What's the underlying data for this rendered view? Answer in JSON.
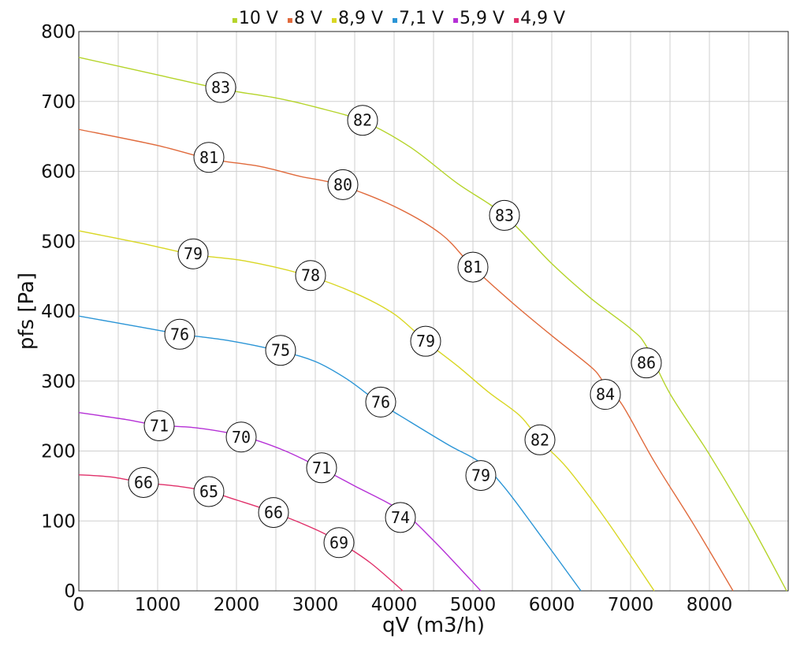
{
  "chart_data": {
    "type": "line",
    "xlabel": "qV (m3/h)",
    "ylabel": "pfs [Pa]",
    "xlim": [
      0,
      9000
    ],
    "ylim": [
      0,
      800
    ],
    "xticks": [
      0,
      1000,
      2000,
      3000,
      4000,
      5000,
      6000,
      7000,
      8000
    ],
    "yticks": [
      0,
      100,
      200,
      300,
      400,
      500,
      600,
      700,
      800
    ],
    "grid": true,
    "legend_position": "top-center",
    "series": [
      {
        "name": "10 V",
        "color": "#b5d42a",
        "points": [
          [
            0,
            763
          ],
          [
            1000,
            738
          ],
          [
            1800,
            718
          ],
          [
            2500,
            705
          ],
          [
            3000,
            692
          ],
          [
            3600,
            672
          ],
          [
            4200,
            635
          ],
          [
            4800,
            583
          ],
          [
            5400,
            537
          ],
          [
            6000,
            468
          ],
          [
            6500,
            418
          ],
          [
            7000,
            375
          ],
          [
            7200,
            350
          ],
          [
            7500,
            282
          ],
          [
            8000,
            195
          ],
          [
            8500,
            100
          ],
          [
            8980,
            0
          ]
        ],
        "labels": [
          {
            "x": 1800,
            "y": 720,
            "text": "83"
          },
          {
            "x": 3600,
            "y": 673,
            "text": "82"
          },
          {
            "x": 5400,
            "y": 537,
            "text": "83"
          },
          {
            "x": 7200,
            "y": 326,
            "text": "86"
          }
        ]
      },
      {
        "name": "8 V",
        "color": "#e06a3c",
        "points": [
          [
            0,
            660
          ],
          [
            1000,
            637
          ],
          [
            1650,
            618
          ],
          [
            2300,
            607
          ],
          [
            2800,
            593
          ],
          [
            3300,
            581
          ],
          [
            4000,
            550
          ],
          [
            4600,
            510
          ],
          [
            5000,
            463
          ],
          [
            5500,
            412
          ],
          [
            6000,
            365
          ],
          [
            6500,
            320
          ],
          [
            6650,
            300
          ],
          [
            6900,
            265
          ],
          [
            7300,
            185
          ],
          [
            7800,
            95
          ],
          [
            8300,
            0
          ]
        ],
        "labels": [
          {
            "x": 1650,
            "y": 620,
            "text": "81"
          },
          {
            "x": 3350,
            "y": 581,
            "text": "80"
          },
          {
            "x": 5000,
            "y": 463,
            "text": "81"
          },
          {
            "x": 6680,
            "y": 281,
            "text": "84"
          }
        ]
      },
      {
        "name": "8,9 V",
        "color": "#d9d724",
        "points": [
          [
            0,
            515
          ],
          [
            800,
            497
          ],
          [
            1450,
            481
          ],
          [
            2100,
            472
          ],
          [
            2900,
            451
          ],
          [
            3500,
            426
          ],
          [
            4000,
            396
          ],
          [
            4400,
            357
          ],
          [
            4800,
            322
          ],
          [
            5200,
            284
          ],
          [
            5600,
            250
          ],
          [
            5850,
            215
          ],
          [
            6200,
            175
          ],
          [
            6700,
            100
          ],
          [
            7300,
            0
          ]
        ],
        "labels": [
          {
            "x": 1450,
            "y": 482,
            "text": "79"
          },
          {
            "x": 2940,
            "y": 451,
            "text": "78"
          },
          {
            "x": 4400,
            "y": 357,
            "text": "79"
          },
          {
            "x": 5850,
            "y": 216,
            "text": "82"
          }
        ]
      },
      {
        "name": "7,1 V",
        "color": "#2b95d6",
        "points": [
          [
            0,
            393
          ],
          [
            700,
            379
          ],
          [
            1300,
            367
          ],
          [
            1900,
            358
          ],
          [
            2550,
            343
          ],
          [
            3000,
            328
          ],
          [
            3400,
            303
          ],
          [
            3800,
            270
          ],
          [
            4200,
            242
          ],
          [
            4700,
            208
          ],
          [
            5100,
            183
          ],
          [
            5400,
            148
          ],
          [
            5800,
            88
          ],
          [
            6370,
            0
          ]
        ],
        "labels": [
          {
            "x": 1280,
            "y": 367,
            "text": "76"
          },
          {
            "x": 2560,
            "y": 344,
            "text": "75"
          },
          {
            "x": 3830,
            "y": 270,
            "text": "76"
          },
          {
            "x": 5100,
            "y": 165,
            "text": "79"
          }
        ]
      },
      {
        "name": "5,9 V",
        "color": "#b530d6",
        "points": [
          [
            0,
            255
          ],
          [
            600,
            245
          ],
          [
            1000,
            237
          ],
          [
            1500,
            233
          ],
          [
            2050,
            222
          ],
          [
            2600,
            201
          ],
          [
            3080,
            175
          ],
          [
            3500,
            150
          ],
          [
            4080,
            115
          ],
          [
            4500,
            72
          ],
          [
            5100,
            0
          ]
        ],
        "labels": [
          {
            "x": 1020,
            "y": 236,
            "text": "71"
          },
          {
            "x": 2060,
            "y": 220,
            "text": "70"
          },
          {
            "x": 3080,
            "y": 176,
            "text": "71"
          },
          {
            "x": 4080,
            "y": 105,
            "text": "74"
          }
        ]
      },
      {
        "name": "4,9 V",
        "color": "#e0306a",
        "points": [
          [
            0,
            166
          ],
          [
            400,
            163
          ],
          [
            820,
            155
          ],
          [
            1300,
            149
          ],
          [
            1650,
            142
          ],
          [
            2000,
            130
          ],
          [
            2480,
            112
          ],
          [
            3000,
            88
          ],
          [
            3300,
            70
          ],
          [
            3700,
            40
          ],
          [
            4110,
            0
          ]
        ],
        "labels": [
          {
            "x": 820,
            "y": 155,
            "text": "66"
          },
          {
            "x": 1650,
            "y": 142,
            "text": "65"
          },
          {
            "x": 2470,
            "y": 112,
            "text": "66"
          },
          {
            "x": 3300,
            "y": 69,
            "text": "69"
          }
        ]
      }
    ]
  }
}
